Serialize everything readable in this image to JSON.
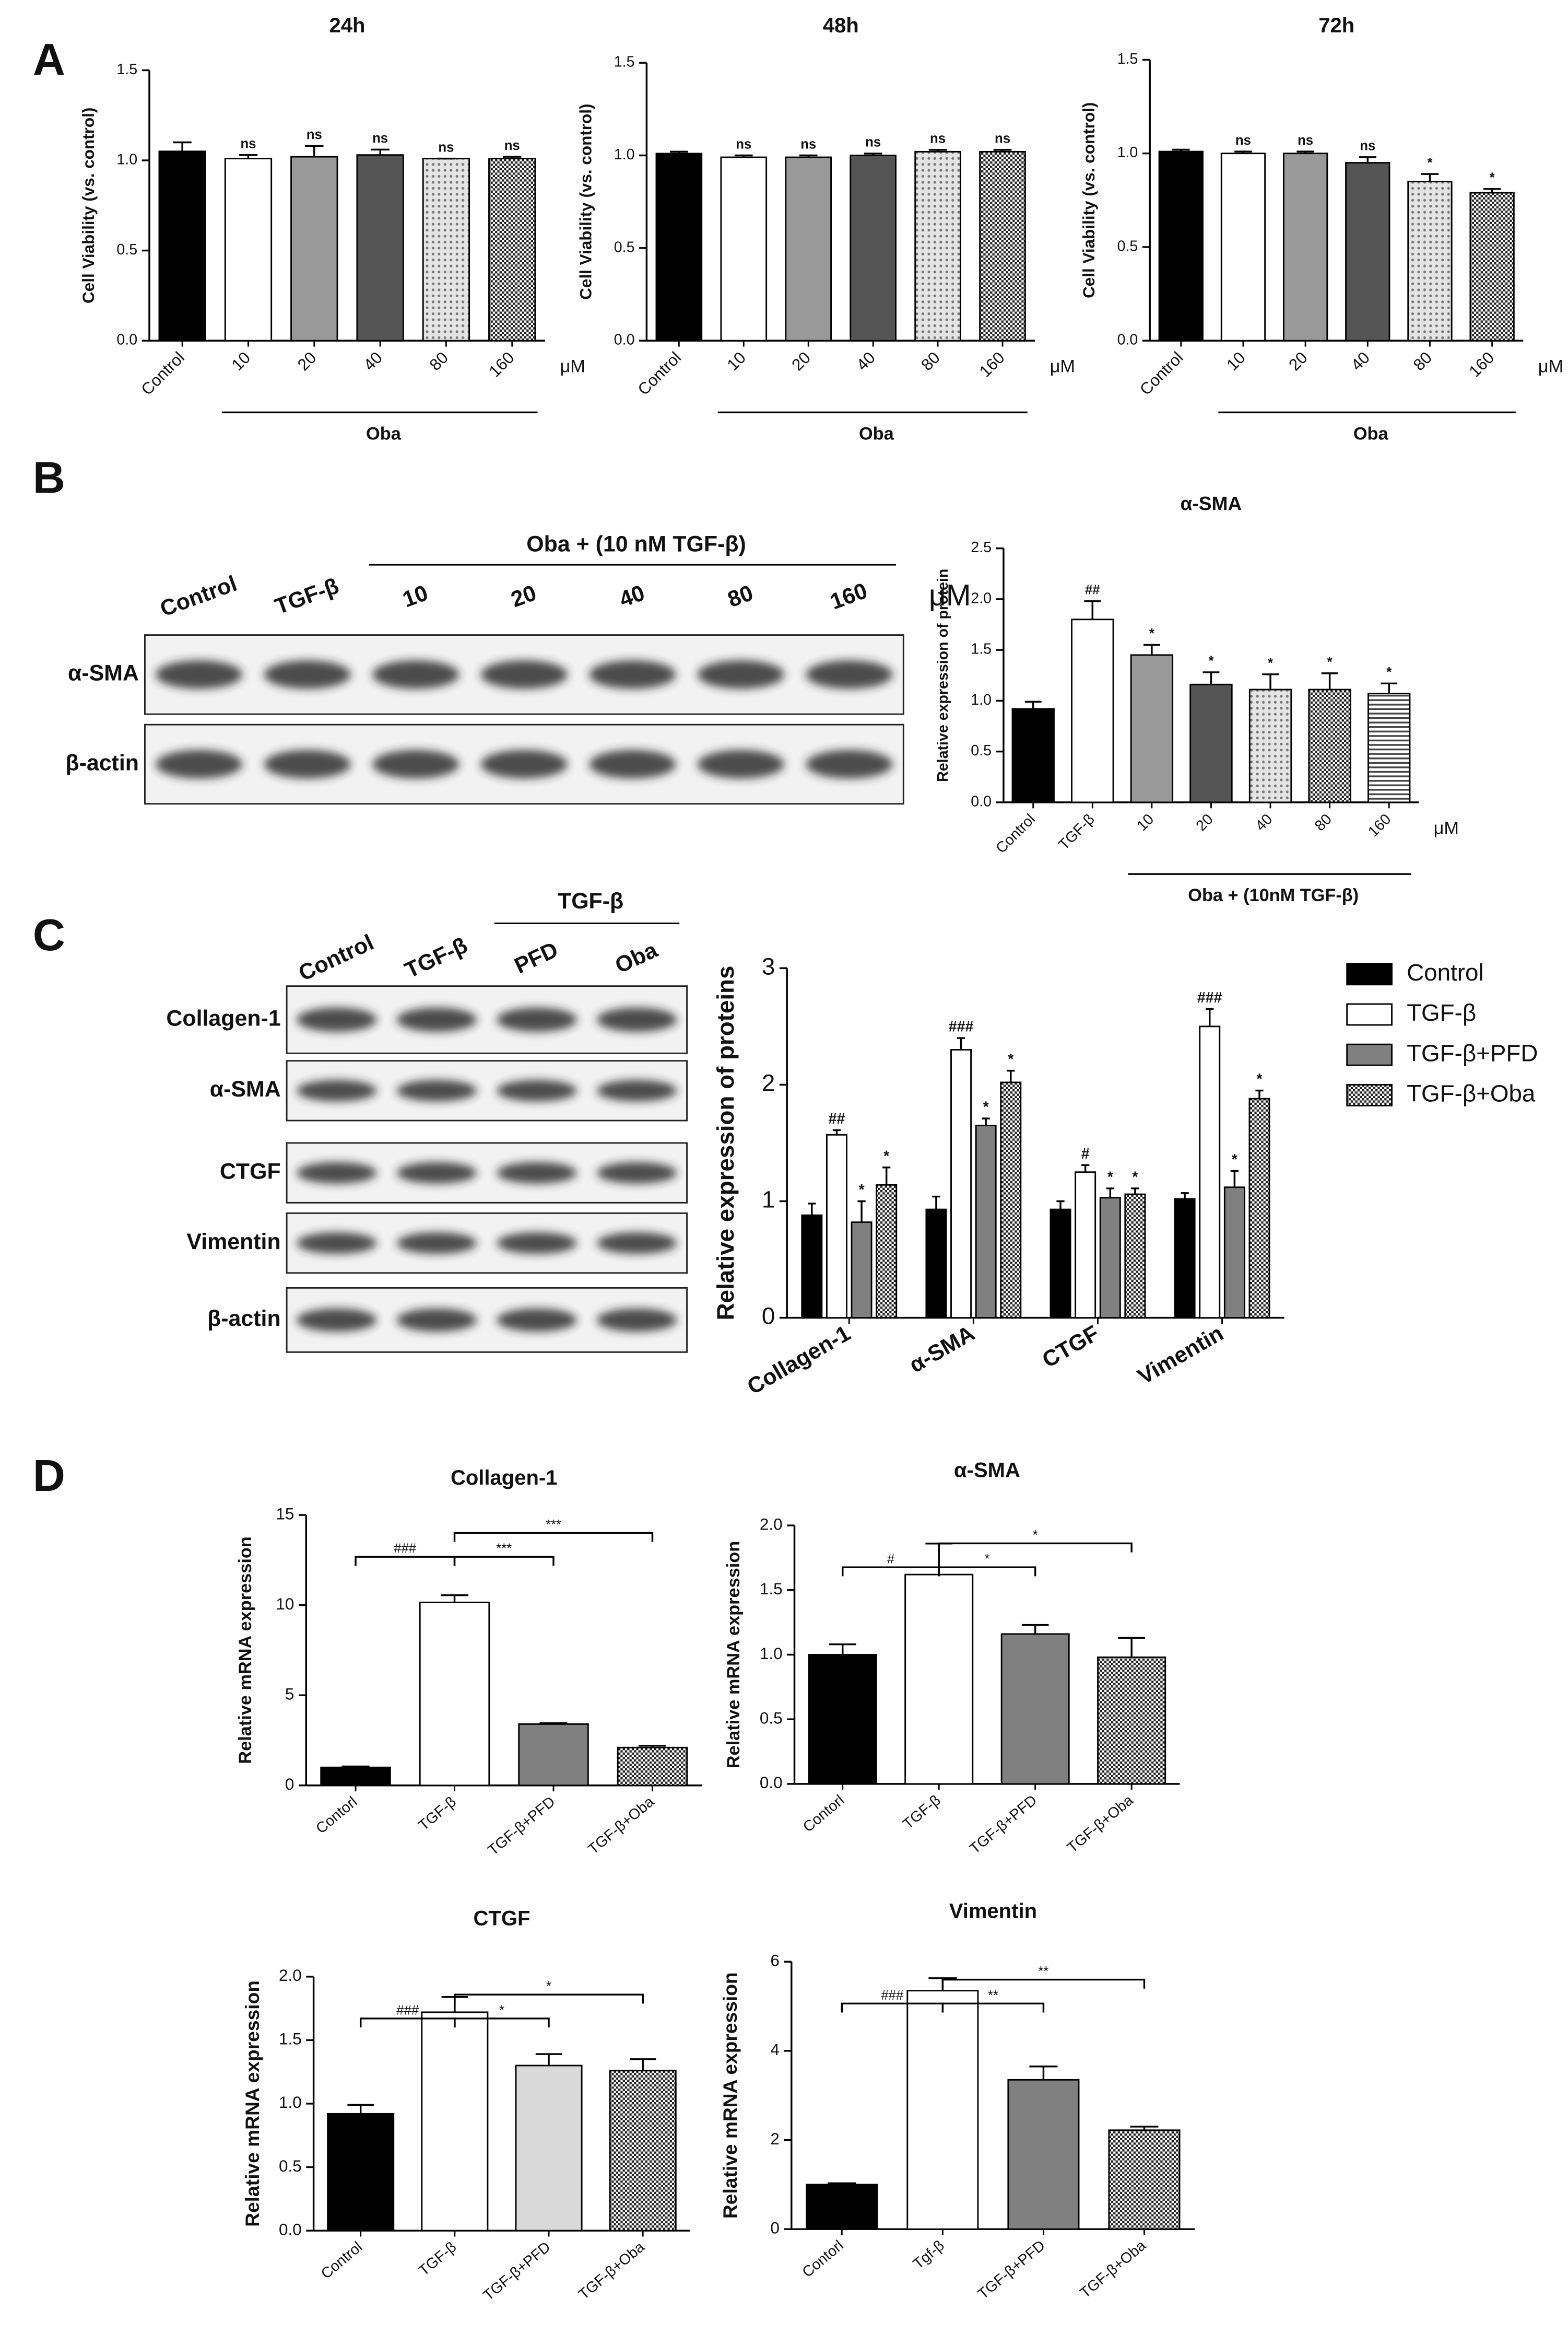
{
  "panel_labels": [
    "A",
    "B",
    "C",
    "D"
  ],
  "blots": [
    {
      "lanes": [
        "Control",
        "TGF-β",
        "10",
        "20",
        "40",
        "80",
        "160"
      ],
      "unit": "μM",
      "header": "Oba + (10 nM TGF-β)",
      "header_start": 2,
      "rows": [
        "α-SMA",
        "β-actin"
      ]
    },
    {
      "lanes": [
        "Control",
        "TGF-β",
        "PFD",
        "Oba"
      ],
      "header": "TGF-β",
      "header_start": 2,
      "rows": [
        "Collagen-1",
        "α-SMA",
        "CTGF",
        "Vimentin",
        "β-actin"
      ]
    }
  ],
  "chart_data": [
    {
      "type": "bar",
      "title": "24h",
      "y_label": "Cell Viability (vs. control)",
      "categories": [
        "Control",
        "10",
        "20",
        "40",
        "80",
        "160"
      ],
      "unit": "μM",
      "group": {
        "label": "Oba",
        "start": 1
      },
      "values": [
        1.05,
        1.01,
        1.02,
        1.03,
        1.01,
        1.01
      ],
      "errors": [
        0.05,
        0.02,
        0.06,
        0.03,
        0.0,
        0.01
      ],
      "annotations": [
        null,
        "ns",
        "ns",
        "ns",
        "ns",
        "ns"
      ],
      "colors": [
        "#000000",
        "#ffffff",
        "#999999",
        "#555555",
        "dots",
        "checker"
      ],
      "ylim": [
        0,
        1.5
      ],
      "yticks": [
        {
          "value": 0,
          "label": "0.0"
        },
        0.5,
        {
          "value": 1,
          "label": "1.0"
        },
        1.5
      ]
    },
    {
      "type": "bar",
      "title": "48h",
      "y_label": "Cell Viability (vs. control)",
      "categories": [
        "Control",
        "10",
        "20",
        "40",
        "80",
        "160"
      ],
      "unit": "μM",
      "group": {
        "label": "Oba",
        "start": 1
      },
      "values": [
        1.01,
        0.99,
        0.99,
        1.0,
        1.02,
        1.02
      ],
      "errors": [
        0.01,
        0.01,
        0.01,
        0.01,
        0.01,
        0.01
      ],
      "annotations": [
        null,
        "ns",
        "ns",
        "ns",
        "ns",
        "ns"
      ],
      "colors": [
        "#000000",
        "#ffffff",
        "#999999",
        "#555555",
        "dots",
        "checker"
      ],
      "ylim": [
        0,
        1.5
      ],
      "yticks": [
        {
          "value": 0,
          "label": "0.0"
        },
        0.5,
        {
          "value": 1,
          "label": "1.0"
        },
        1.5
      ]
    },
    {
      "type": "bar",
      "title": "72h",
      "y_label": "Cell Viability (vs. control)",
      "categories": [
        "Control",
        "10",
        "20",
        "40",
        "80",
        "160"
      ],
      "unit": "μM",
      "group": {
        "label": "Oba",
        "start": 1
      },
      "values": [
        1.01,
        1.0,
        1.0,
        0.95,
        0.85,
        0.79
      ],
      "errors": [
        0.01,
        0.01,
        0.01,
        0.03,
        0.04,
        0.02
      ],
      "annotations": [
        null,
        "ns",
        "ns",
        "ns",
        "*",
        "*"
      ],
      "colors": [
        "#000000",
        "#ffffff",
        "#999999",
        "#555555",
        "dots",
        "checker"
      ],
      "ylim": [
        0,
        1.5
      ],
      "yticks": [
        {
          "value": 0,
          "label": "0.0"
        },
        0.5,
        {
          "value": 1,
          "label": "1.0"
        },
        1.5
      ]
    },
    {
      "type": "bar",
      "title": "α-SMA",
      "y_label": "Relative expression of protein",
      "categories": [
        "Control",
        "TGF-β",
        "10",
        "20",
        "40",
        "80",
        "160"
      ],
      "unit": "μM",
      "group": {
        "label": "Oba + (10nM TGF-β)",
        "start": 2
      },
      "values": [
        0.92,
        1.8,
        1.45,
        1.16,
        1.11,
        1.11,
        1.07
      ],
      "errors": [
        0.07,
        0.18,
        0.1,
        0.12,
        0.15,
        0.16,
        0.1
      ],
      "annotations": [
        null,
        "##",
        "*",
        "*",
        "*",
        "*",
        "*"
      ],
      "colors": [
        "#000000",
        "#ffffff",
        "#999999",
        "#555555",
        "dots",
        "checker",
        "stripes"
      ],
      "ylim": [
        0,
        2.5
      ],
      "yticks": [
        {
          "value": 0,
          "label": "0.0"
        },
        0.5,
        {
          "value": 1,
          "label": "1.0"
        },
        1.5,
        {
          "value": 2,
          "label": "2.0"
        },
        2.5
      ]
    },
    {
      "type": "bar",
      "y_label": "Relative expression of proteins",
      "categories": [
        "Collagen-1",
        "α-SMA",
        "CTGF",
        "Vimentin"
      ],
      "legend": "right",
      "series": [
        {
          "name": "Control",
          "color": "#000000",
          "values": [
            0.88,
            0.93,
            0.93,
            1.02
          ],
          "errors": [
            0.1,
            0.11,
            0.07,
            0.05
          ],
          "annotations": [
            null,
            null,
            null,
            null
          ]
        },
        {
          "name": "TGF-β",
          "color": "#ffffff",
          "values": [
            1.57,
            2.3,
            1.25,
            2.5
          ],
          "errors": [
            0.04,
            0.1,
            0.06,
            0.15
          ],
          "annotations": [
            "##",
            "###",
            "#",
            "###"
          ]
        },
        {
          "name": "TGF-β+PFD",
          "color": "#808080",
          "values": [
            0.82,
            1.65,
            1.03,
            1.12
          ],
          "errors": [
            0.18,
            0.06,
            0.08,
            0.14
          ],
          "annotations": [
            "*",
            "*",
            "*",
            "*"
          ]
        },
        {
          "name": "TGF-β+Oba",
          "color": "checker",
          "values": [
            1.14,
            2.02,
            1.06,
            1.88
          ],
          "errors": [
            0.15,
            0.1,
            0.05,
            0.07
          ],
          "annotations": [
            "*",
            "*",
            "*",
            "*"
          ]
        }
      ],
      "ylim": [
        0,
        3
      ],
      "yticks": [
        0,
        1,
        2,
        3
      ]
    },
    {
      "type": "bar",
      "title": "Collagen-1",
      "y_label": "Relative mRNA expression",
      "categories": [
        "Contorl",
        "TGF-β",
        "TGF-β+PFD",
        "TGF-β+Oba"
      ],
      "values": [
        1.0,
        10.15,
        3.4,
        2.1
      ],
      "errors": [
        0.05,
        0.4,
        0.05,
        0.1
      ],
      "colors": [
        "#000000",
        "#ffffff",
        "#808080",
        "checker"
      ],
      "brackets": [
        {
          "from": 0,
          "to": 1,
          "label": "###"
        },
        {
          "from": 1,
          "to": 2,
          "label": "***"
        },
        {
          "from": 1,
          "to": 3,
          "label": "***"
        }
      ],
      "ylim": [
        0,
        15
      ],
      "yticks": [
        0,
        5,
        10,
        15
      ]
    },
    {
      "type": "bar",
      "title": "α-SMA",
      "y_label": "Relative mRNA expression",
      "categories": [
        "Contorl",
        "TGF-β",
        "TGF-β+PFD",
        "TGF-β+Oba"
      ],
      "values": [
        1.0,
        1.62,
        1.16,
        0.98
      ],
      "errors": [
        0.08,
        0.24,
        0.07,
        0.15
      ],
      "colors": [
        "#000000",
        "#ffffff",
        "#808080",
        "checker"
      ],
      "brackets": [
        {
          "from": 0,
          "to": 1,
          "label": "#"
        },
        {
          "from": 1,
          "to": 2,
          "label": "*"
        },
        {
          "from": 1,
          "to": 3,
          "label": "*"
        }
      ],
      "ylim": [
        0,
        2
      ],
      "yticks": [
        {
          "value": 0,
          "label": "0.0"
        },
        0.5,
        {
          "value": 1,
          "label": "1.0"
        },
        1.5,
        {
          "value": 2,
          "label": "2.0"
        }
      ]
    },
    {
      "type": "bar",
      "title": "CTGF",
      "y_label": "Relative mRNA expression",
      "categories": [
        "Control",
        "TGF-β",
        "TGF-β+PFD",
        "TGF-β+Oba"
      ],
      "values": [
        0.92,
        1.72,
        1.3,
        1.26
      ],
      "errors": [
        0.07,
        0.12,
        0.09,
        0.09
      ],
      "colors": [
        "#000000",
        "#ffffff",
        "#d9d9d9",
        "checker"
      ],
      "brackets": [
        {
          "from": 0,
          "to": 1,
          "label": "###"
        },
        {
          "from": 1,
          "to": 2,
          "label": "*"
        },
        {
          "from": 1,
          "to": 3,
          "label": "*"
        }
      ],
      "ylim": [
        0,
        2
      ],
      "yticks": [
        {
          "value": 0,
          "label": "0.0"
        },
        0.5,
        {
          "value": 1,
          "label": "1.0"
        },
        1.5,
        {
          "value": 2,
          "label": "2.0"
        }
      ]
    },
    {
      "type": "bar",
      "title": "Vimentin",
      "y_label": "Relative mRNA expression",
      "categories": [
        "Contorl",
        "Tgf-β",
        "TGF-β+PFD",
        "TGF-β+Oba"
      ],
      "values": [
        1.0,
        5.35,
        3.35,
        2.22
      ],
      "errors": [
        0.03,
        0.28,
        0.3,
        0.08
      ],
      "colors": [
        "#000000",
        "#ffffff",
        "#808080",
        "checker"
      ],
      "brackets": [
        {
          "from": 0,
          "to": 1,
          "label": "###"
        },
        {
          "from": 1,
          "to": 2,
          "label": "**"
        },
        {
          "from": 1,
          "to": 3,
          "label": "**"
        }
      ],
      "ylim": [
        0,
        6
      ],
      "yticks": [
        0,
        2,
        4,
        6
      ]
    }
  ]
}
